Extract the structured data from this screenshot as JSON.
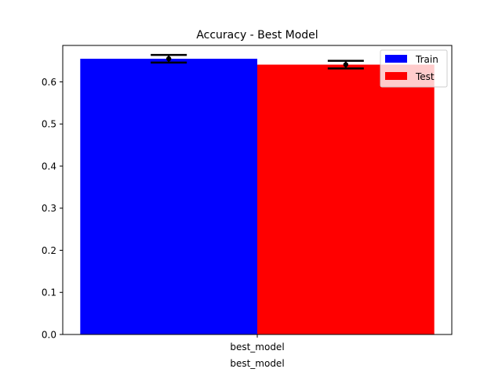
{
  "chart_data": {
    "type": "bar",
    "title": "Accuracy - Best Model",
    "xlabel": "best_model",
    "ylabel": "",
    "categories": [
      "best_model"
    ],
    "series": [
      {
        "name": "Train",
        "values": [
          0.655
        ],
        "error": [
          0.009
        ],
        "color": "#0000ff"
      },
      {
        "name": "Test",
        "values": [
          0.641
        ],
        "error": [
          0.009
        ],
        "color": "#ff0000"
      }
    ],
    "ylim": [
      0,
      0.6866
    ],
    "yticks": [
      "0.0",
      "0.1",
      "0.2",
      "0.3",
      "0.4",
      "0.5",
      "0.6"
    ],
    "legend": "top-right",
    "grid": false,
    "errorbar_color": "#000000"
  }
}
